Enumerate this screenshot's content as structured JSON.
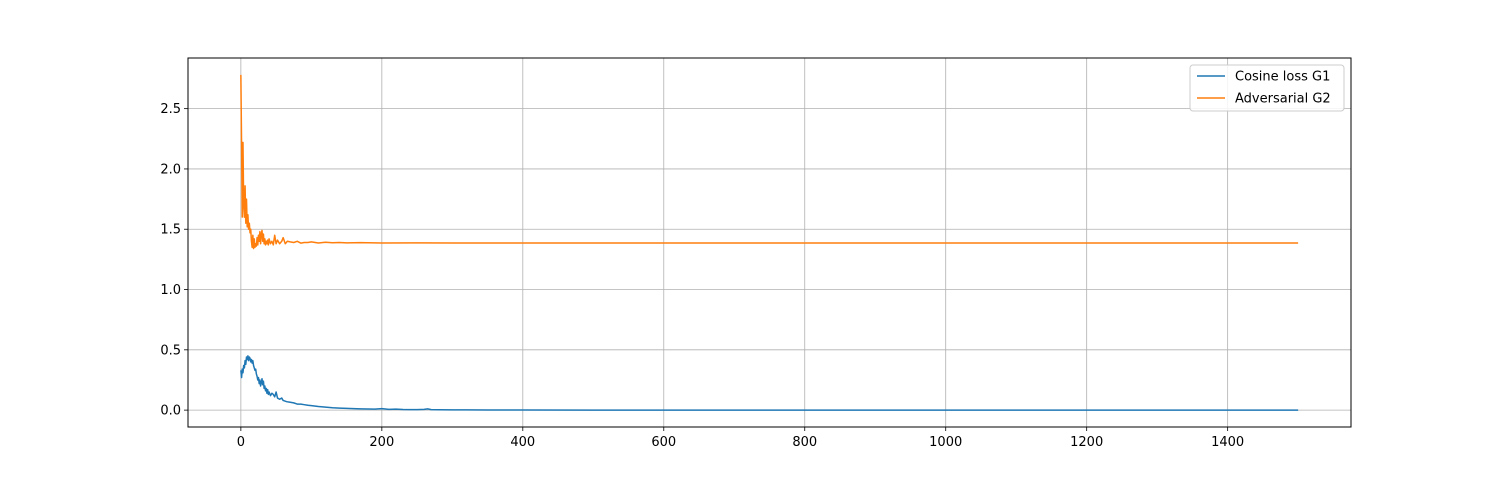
{
  "chart_data": {
    "type": "line",
    "title": "",
    "xlabel": "",
    "ylabel": "",
    "xlim": [
      -75,
      1575
    ],
    "ylim": [
      -0.14,
      2.92
    ],
    "xticks": [
      0,
      200,
      400,
      600,
      800,
      1000,
      1200,
      1400
    ],
    "yticks": [
      0.0,
      0.5,
      1.0,
      1.5,
      2.0,
      2.5
    ],
    "xtick_labels": [
      "0",
      "200",
      "400",
      "600",
      "800",
      "1000",
      "1200",
      "1400"
    ],
    "ytick_labels": [
      "0.0",
      "0.5",
      "1.0",
      "1.5",
      "2.0",
      "2.5"
    ],
    "grid": true,
    "legend_position": "top-right",
    "series": [
      {
        "name": "Cosine loss G1",
        "color": "#1f77b4",
        "points": [
          [
            0,
            0.33
          ],
          [
            1,
            0.27
          ],
          [
            2,
            0.34
          ],
          [
            3,
            0.31
          ],
          [
            4,
            0.37
          ],
          [
            5,
            0.35
          ],
          [
            6,
            0.41
          ],
          [
            7,
            0.38
          ],
          [
            8,
            0.44
          ],
          [
            9,
            0.42
          ],
          [
            10,
            0.45
          ],
          [
            11,
            0.41
          ],
          [
            12,
            0.44
          ],
          [
            13,
            0.43
          ],
          [
            14,
            0.4
          ],
          [
            15,
            0.42
          ],
          [
            16,
            0.39
          ],
          [
            17,
            0.41
          ],
          [
            18,
            0.37
          ],
          [
            19,
            0.35
          ],
          [
            20,
            0.33
          ],
          [
            21,
            0.34
          ],
          [
            22,
            0.3
          ],
          [
            23,
            0.28
          ],
          [
            24,
            0.25
          ],
          [
            25,
            0.27
          ],
          [
            26,
            0.22
          ],
          [
            27,
            0.25
          ],
          [
            28,
            0.2
          ],
          [
            29,
            0.23
          ],
          [
            30,
            0.26
          ],
          [
            31,
            0.21
          ],
          [
            32,
            0.24
          ],
          [
            33,
            0.18
          ],
          [
            34,
            0.2
          ],
          [
            35,
            0.16
          ],
          [
            36,
            0.18
          ],
          [
            37,
            0.14
          ],
          [
            38,
            0.17
          ],
          [
            39,
            0.13
          ],
          [
            40,
            0.15
          ],
          [
            42,
            0.12
          ],
          [
            44,
            0.14
          ],
          [
            46,
            0.13
          ],
          [
            48,
            0.11
          ],
          [
            50,
            0.15
          ],
          [
            52,
            0.1
          ],
          [
            55,
            0.09
          ],
          [
            58,
            0.1
          ],
          [
            60,
            0.08
          ],
          [
            65,
            0.07
          ],
          [
            70,
            0.065
          ],
          [
            75,
            0.06
          ],
          [
            80,
            0.05
          ],
          [
            85,
            0.05
          ],
          [
            90,
            0.045
          ],
          [
            95,
            0.04
          ],
          [
            100,
            0.037
          ],
          [
            110,
            0.03
          ],
          [
            120,
            0.025
          ],
          [
            130,
            0.02
          ],
          [
            140,
            0.017
          ],
          [
            150,
            0.014
          ],
          [
            160,
            0.012
          ],
          [
            170,
            0.01
          ],
          [
            180,
            0.009
          ],
          [
            190,
            0.008
          ],
          [
            200,
            0.012
          ],
          [
            210,
            0.006
          ],
          [
            220,
            0.008
          ],
          [
            230,
            0.005
          ],
          [
            240,
            0.004
          ],
          [
            250,
            0.004
          ],
          [
            260,
            0.006
          ],
          [
            265,
            0.01
          ],
          [
            270,
            0.004
          ],
          [
            280,
            0.003
          ],
          [
            300,
            0.002
          ],
          [
            320,
            0.002
          ],
          [
            350,
            0.001
          ],
          [
            400,
            0.0005
          ],
          [
            500,
            0.0002
          ],
          [
            600,
            0.0
          ],
          [
            800,
            0.0
          ],
          [
            1000,
            0.0
          ],
          [
            1200,
            0.0
          ],
          [
            1400,
            0.0
          ],
          [
            1500,
            0.0
          ]
        ]
      },
      {
        "name": "Adversarial G2",
        "color": "#ff7f0e",
        "points": [
          [
            0,
            2.78
          ],
          [
            1,
            2.2
          ],
          [
            2,
            1.6
          ],
          [
            3,
            2.22
          ],
          [
            4,
            1.7
          ],
          [
            5,
            1.6
          ],
          [
            6,
            1.86
          ],
          [
            7,
            1.55
          ],
          [
            8,
            1.75
          ],
          [
            9,
            1.52
          ],
          [
            10,
            1.62
          ],
          [
            11,
            1.5
          ],
          [
            12,
            1.55
          ],
          [
            13,
            1.47
          ],
          [
            14,
            1.5
          ],
          [
            15,
            1.4
          ],
          [
            16,
            1.35
          ],
          [
            17,
            1.45
          ],
          [
            18,
            1.34
          ],
          [
            19,
            1.42
          ],
          [
            20,
            1.35
          ],
          [
            21,
            1.38
          ],
          [
            22,
            1.36
          ],
          [
            23,
            1.43
          ],
          [
            24,
            1.37
          ],
          [
            25,
            1.45
          ],
          [
            26,
            1.4
          ],
          [
            27,
            1.48
          ],
          [
            28,
            1.38
          ],
          [
            29,
            1.46
          ],
          [
            30,
            1.49
          ],
          [
            31,
            1.4
          ],
          [
            32,
            1.46
          ],
          [
            33,
            1.38
          ],
          [
            34,
            1.42
          ],
          [
            35,
            1.37
          ],
          [
            36,
            1.4
          ],
          [
            37,
            1.38
          ],
          [
            38,
            1.41
          ],
          [
            39,
            1.37
          ],
          [
            40,
            1.42
          ],
          [
            42,
            1.38
          ],
          [
            44,
            1.4
          ],
          [
            46,
            1.37
          ],
          [
            48,
            1.45
          ],
          [
            50,
            1.38
          ],
          [
            52,
            1.41
          ],
          [
            55,
            1.38
          ],
          [
            58,
            1.4
          ],
          [
            60,
            1.43
          ],
          [
            63,
            1.38
          ],
          [
            66,
            1.4
          ],
          [
            70,
            1.395
          ],
          [
            75,
            1.39
          ],
          [
            80,
            1.4
          ],
          [
            85,
            1.385
          ],
          [
            90,
            1.39
          ],
          [
            95,
            1.39
          ],
          [
            100,
            1.395
          ],
          [
            110,
            1.386
          ],
          [
            120,
            1.392
          ],
          [
            130,
            1.388
          ],
          [
            140,
            1.39
          ],
          [
            150,
            1.387
          ],
          [
            170,
            1.389
          ],
          [
            200,
            1.386
          ],
          [
            250,
            1.387
          ],
          [
            300,
            1.386
          ],
          [
            400,
            1.386
          ],
          [
            600,
            1.386
          ],
          [
            800,
            1.386
          ],
          [
            1000,
            1.386
          ],
          [
            1200,
            1.386
          ],
          [
            1400,
            1.386
          ],
          [
            1500,
            1.386
          ]
        ]
      }
    ]
  }
}
